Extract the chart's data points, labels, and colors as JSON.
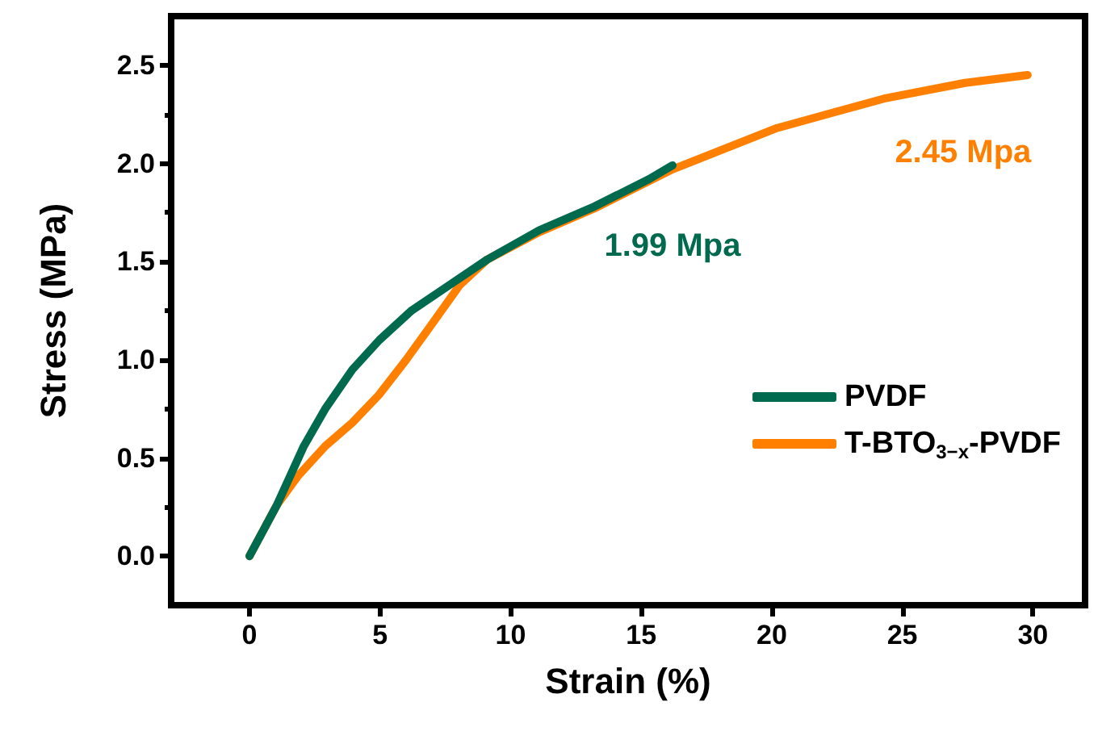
{
  "chart_data": {
    "type": "line",
    "xlabel": "Strain (%)",
    "ylabel": "Stress (MPa)",
    "xlim": [
      -3,
      32
    ],
    "xticks": [
      0,
      5,
      10,
      15,
      20,
      25,
      30
    ],
    "ylim": [
      -0.25,
      2.75
    ],
    "yticks": [
      {
        "value": 0,
        "label": "0.0"
      },
      0.5,
      {
        "value": 1,
        "label": "1.0"
      },
      1.5,
      {
        "value": 2,
        "label": "2.0"
      },
      2.5
    ],
    "grid": false,
    "legend": "bottom right",
    "marker": "none",
    "line_style": "solid",
    "series": [
      {
        "name": "PVDF",
        "color": "#006a4e",
        "x": [
          0,
          1.05,
          2.08,
          2.9,
          3.94,
          4.97,
          6.2,
          7.65,
          9.1,
          11.1,
          13.2,
          15.3,
          16.2
        ],
        "values": [
          0,
          0.26,
          0.56,
          0.75,
          0.95,
          1.1,
          1.25,
          1.38,
          1.51,
          1.66,
          1.78,
          1.92,
          1.99
        ]
      },
      {
        "name": "T-BTO$_{3−x}$-PVDF",
        "color": "#ff8000",
        "x": [
          0,
          1.05,
          1.87,
          2.9,
          3.94,
          4.95,
          6.0,
          7.03,
          8.05,
          9.1,
          11.1,
          13.2,
          16.2,
          20.2,
          24.3,
          27.4,
          29.8
        ],
        "values": [
          0,
          0.26,
          0.41,
          0.56,
          0.68,
          0.82,
          1.0,
          1.19,
          1.38,
          1.51,
          1.65,
          1.77,
          1.97,
          2.18,
          2.33,
          2.41,
          2.45
        ]
      }
    ],
    "annotations": [
      {
        "text": "1.99 Mpa",
        "x": 16.2,
        "y": 1.99
      },
      {
        "text": "2.45 Mpa",
        "x": 29.8,
        "y": 2.45
      }
    ]
  }
}
